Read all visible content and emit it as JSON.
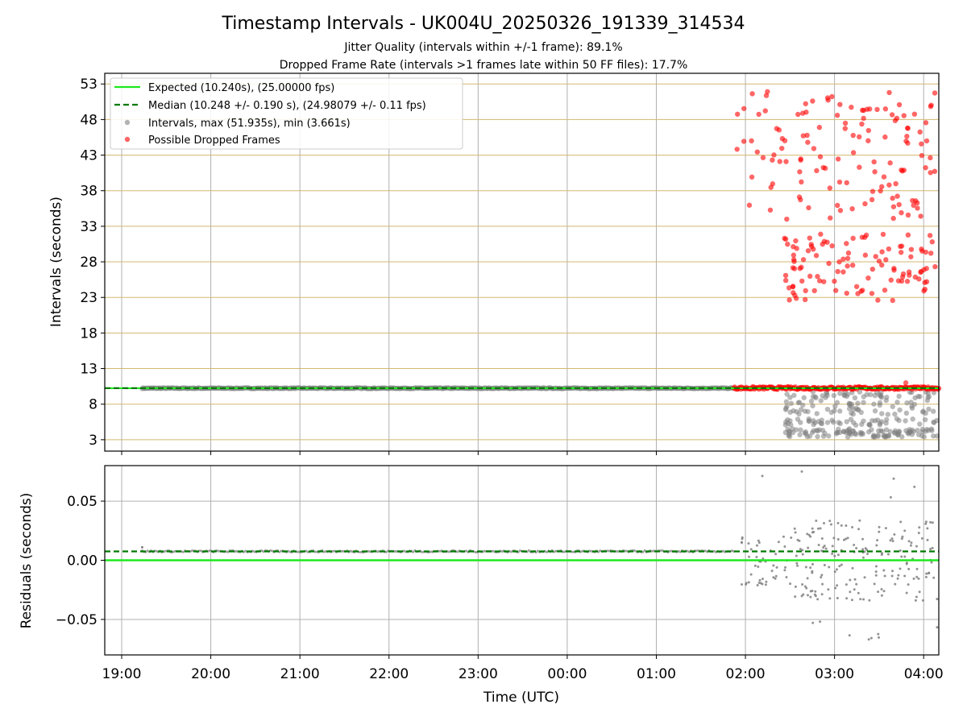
{
  "figure": {
    "title": "Timestamp Intervals - UK004U_20250326_191339_314534",
    "subtitle_line1": "Jitter Quality (intervals within +/-1 frame): 89.1%",
    "subtitle_line2": "Dropped Frame Rate (intervals >1 frames late within 50 FF files): 17.7%",
    "xlabel": "Time (UTC)"
  },
  "colors": {
    "expected": "#1ee81e",
    "median": "#007a00",
    "intervals": "#808080",
    "dropped": "#ff0000",
    "hgrid_top": "#d4b870",
    "grid": "#b0b0b0"
  },
  "chart_data": [
    {
      "type": "scatter",
      "ylabel": "Intervals (seconds)",
      "xlim": [
        -0.19,
        9.17
      ],
      "ylim": [
        1.4,
        54.5
      ],
      "x_unit": "hours after 19:00 UTC",
      "xticks": [
        "19:00",
        "20:00",
        "21:00",
        "22:00",
        "23:00",
        "00:00",
        "01:00",
        "02:00",
        "03:00",
        "04:00"
      ],
      "yticks": [
        3,
        8,
        13,
        18,
        23,
        28,
        33,
        38,
        43,
        48,
        53
      ],
      "grid": "horizontal gold lines + vertical gray lines",
      "legend_position": "upper-left",
      "legend": [
        "Expected (10.240s), (25.00000 fps)",
        "Median (10.248 +/- 0.190 s), (24.98079 +/- 0.11 fps)",
        "Intervals, max (51.935s), min (3.661s)",
        "Possible Dropped Frames"
      ],
      "expected_value": 10.24,
      "median_value": 10.248,
      "max_interval": 51.935,
      "min_interval": 3.661,
      "steady_band": {
        "x_start": 0.23,
        "x_end": 6.87,
        "value": 10.24
      },
      "dropped_band": {
        "x_start": 6.87,
        "x_end": 9.17,
        "value": 10.26
      }
    },
    {
      "type": "scatter",
      "ylabel": "Residuals (seconds)",
      "xlim": [
        -0.19,
        9.17
      ],
      "ylim": [
        -0.08,
        0.08
      ],
      "yticks": [
        "0.05",
        "0.00",
        "−0.05"
      ],
      "ytick_values": [
        0.05,
        0.0,
        -0.05
      ],
      "expected_residual": 0.0,
      "median_residual": 0.0075,
      "steady_band": {
        "x_start": 0.23,
        "x_end": 6.87,
        "value": 0.0075
      }
    }
  ]
}
